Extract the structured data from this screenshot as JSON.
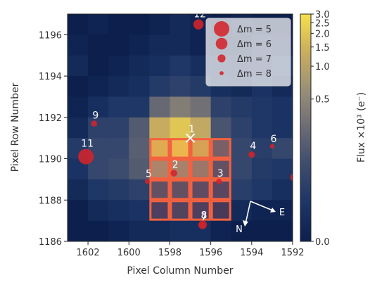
{
  "chart_data": {
    "type": "heatmap",
    "xlabel": "Pixel Column Number",
    "ylabel": "Pixel Row Number",
    "colorbar_label": "Flux ×10³ (e⁻)",
    "x_range": [
      1603,
      1592
    ],
    "y_range": [
      1186,
      1197
    ],
    "x_ticks": [
      {
        "value": 1602,
        "label": "1602"
      },
      {
        "value": 1600,
        "label": "1600"
      },
      {
        "value": 1598,
        "label": "1598"
      },
      {
        "value": 1596,
        "label": "1596"
      },
      {
        "value": 1594,
        "label": "1594"
      },
      {
        "value": 1592,
        "label": "1592"
      }
    ],
    "y_ticks": [
      {
        "value": 1196,
        "label": "1196"
      },
      {
        "value": 1194,
        "label": "1194"
      },
      {
        "value": 1192,
        "label": "1192"
      },
      {
        "value": 1190,
        "label": "1190"
      },
      {
        "value": 1188,
        "label": "1188"
      },
      {
        "value": 1186,
        "label": "1186"
      }
    ],
    "colorbar_ticks": [
      {
        "value": 3.0,
        "label": "3.0"
      },
      {
        "value": 2.5,
        "label": "2.5"
      },
      {
        "value": 2.0,
        "label": "2.0"
      },
      {
        "value": 1.5,
        "label": "1.5"
      },
      {
        "value": 1.0,
        "label": "1.0"
      },
      {
        "value": 0.5,
        "label": "0.5"
      },
      {
        "value": 0.0,
        "label": "0.0"
      }
    ],
    "colorbar_scale": "asinh",
    "colormap": [
      "#0c1f4d",
      "#1c3566",
      "#3b4b6e",
      "#6b6b74",
      "#9a9077",
      "#c9ad5f",
      "#f7e04a"
    ],
    "pixel_values": [
      [
        0.0,
        0.01,
        0.0,
        0.0,
        0.01,
        0.02,
        0.01,
        0.0,
        0.01,
        0.0,
        0.0
      ],
      [
        0.01,
        0.0,
        0.0,
        0.01,
        0.02,
        0.02,
        0.01,
        0.0,
        0.0,
        0.02,
        0.01
      ],
      [
        0.02,
        0.0,
        0.01,
        0.02,
        0.03,
        0.05,
        0.03,
        0.02,
        0.01,
        0.02,
        0.04
      ],
      [
        0.0,
        0.01,
        0.02,
        0.03,
        0.06,
        0.08,
        0.06,
        0.03,
        0.02,
        0.04,
        0.02
      ],
      [
        0.01,
        0.03,
        0.05,
        0.05,
        0.25,
        0.4,
        0.3,
        0.08,
        0.06,
        0.05,
        0.04
      ],
      [
        0.02,
        0.08,
        0.08,
        0.18,
        1.3,
        2.0,
        1.2,
        0.15,
        0.08,
        0.05,
        0.04
      ],
      [
        0.06,
        0.1,
        0.1,
        0.2,
        1.8,
        2.3,
        1.5,
        0.2,
        0.1,
        0.07,
        0.1
      ],
      [
        0.04,
        0.1,
        0.12,
        0.18,
        0.6,
        0.55,
        0.4,
        0.12,
        0.1,
        0.06,
        0.05
      ],
      [
        0.02,
        0.05,
        0.06,
        0.08,
        0.12,
        0.12,
        0.1,
        0.08,
        0.07,
        0.05,
        0.03
      ],
      [
        0.0,
        0.02,
        0.03,
        0.04,
        0.05,
        0.06,
        0.05,
        0.03,
        0.02,
        0.01,
        0.01
      ],
      [
        0.0,
        0.0,
        0.01,
        0.02,
        0.02,
        0.03,
        0.03,
        0.01,
        0.0,
        0.0,
        0.0
      ]
    ],
    "aperture_pixels": [
      [
        1599,
        1191
      ],
      [
        1598,
        1191
      ],
      [
        1597,
        1191
      ],
      [
        1596,
        1191
      ],
      [
        1599,
        1190
      ],
      [
        1598,
        1190
      ],
      [
        1597,
        1190
      ],
      [
        1596,
        1190
      ],
      [
        1599,
        1189
      ],
      [
        1598,
        1189
      ],
      [
        1597,
        1189
      ],
      [
        1596,
        1189
      ],
      [
        1599,
        1188
      ],
      [
        1598,
        1188
      ],
      [
        1597,
        1188
      ],
      [
        1596,
        1188
      ]
    ],
    "aperture_color": "#f4613f",
    "target": {
      "label": "1",
      "x": 1597.0,
      "y": 1191.0
    },
    "stars": [
      {
        "label": "2",
        "x": 1597.8,
        "y": 1189.3,
        "dm": 7.3
      },
      {
        "label": "3",
        "x": 1595.6,
        "y": 1188.9,
        "dm": 7.6
      },
      {
        "label": "4",
        "x": 1594.0,
        "y": 1190.2,
        "dm": 7.4
      },
      {
        "label": "5",
        "x": 1599.1,
        "y": 1188.9,
        "dm": 7.8
      },
      {
        "label": "6",
        "x": 1593.0,
        "y": 1190.6,
        "dm": 7.9
      },
      {
        "label": "7",
        "x": 1596.4,
        "y": 1186.8,
        "dm": 7.8
      },
      {
        "label": "8",
        "x": 1596.4,
        "y": 1186.8,
        "dm": 6.8
      },
      {
        "label": "9",
        "x": 1601.7,
        "y": 1191.7,
        "dm": 7.5
      },
      {
        "label": "11",
        "x": 1602.1,
        "y": 1190.1,
        "dm": 5.0
      },
      {
        "label": "12",
        "x": 1596.6,
        "y": 1196.5,
        "dm": 6.4
      },
      {
        "label": "1",
        "x": 1591.9,
        "y": 1189.1,
        "dm": 6.8
      }
    ],
    "star_color": "#d3232a",
    "legend": {
      "placement": "top-right",
      "entries": [
        {
          "label": "Δm =  5",
          "dm": 5
        },
        {
          "label": "Δm =  6",
          "dm": 6
        },
        {
          "label": "Δm =  7",
          "dm": 7
        },
        {
          "label": "Δm =  8",
          "dm": 8
        }
      ]
    },
    "compass": {
      "north_label": "N",
      "east_label": "E"
    }
  }
}
